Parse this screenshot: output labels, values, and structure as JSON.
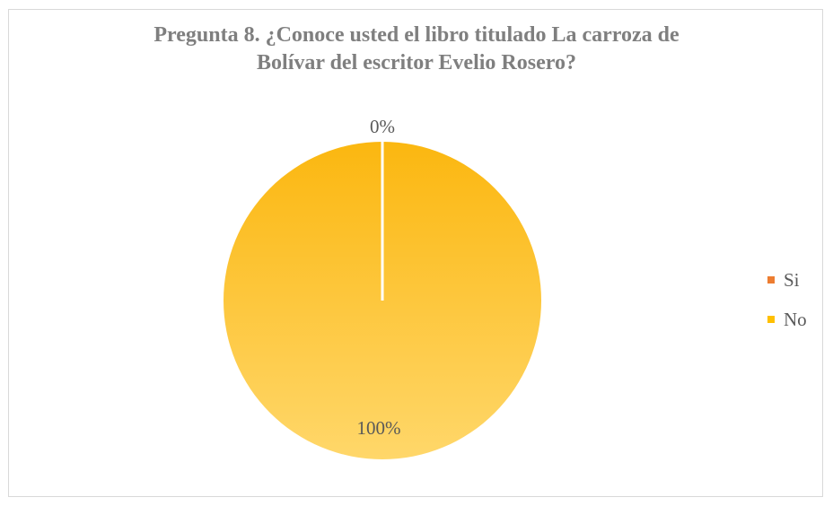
{
  "chart_data": {
    "type": "pie",
    "title_lines": [
      "Pregunta 8. ¿Conoce usted el libro titulado La carroza  de",
      "Bolívar del escritor Evelio Rosero?"
    ],
    "slices": [
      {
        "name": "Si",
        "value": 0,
        "label": "0%",
        "color": "#ed7d31"
      },
      {
        "name": "No",
        "value": 100,
        "label": "100%",
        "color": "#ffc000"
      }
    ],
    "legend_position": "right",
    "pie_gradient": {
      "top": "#fbb710",
      "bottom": "#ffd76a"
    }
  }
}
